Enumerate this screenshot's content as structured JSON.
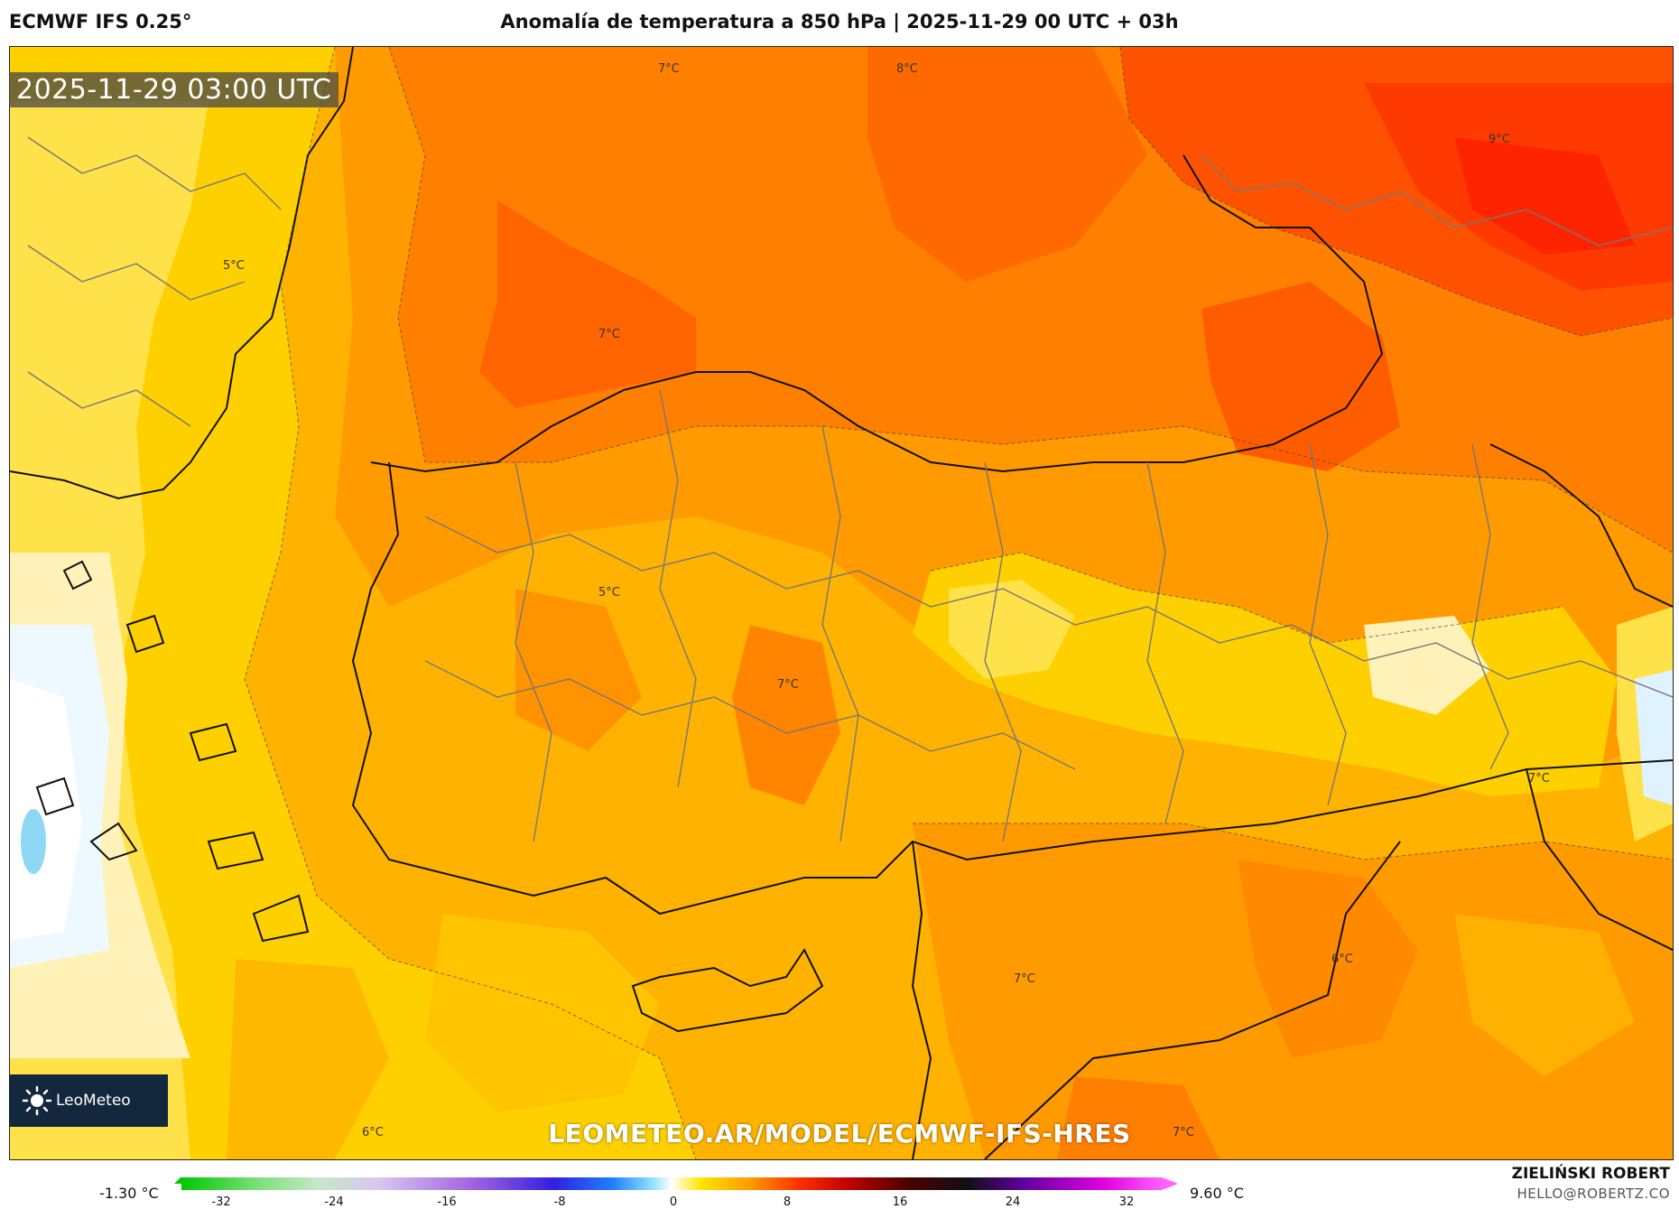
{
  "header": {
    "model": "ECMWF IFS 0.25°",
    "title": "Anomalía de temperatura a 850 hPa | 2025-11-29 00 UTC + 03h"
  },
  "map": {
    "valid_time": "2025-11-29 03:00 UTC",
    "isolines": [
      {
        "label": "7°C"
      },
      {
        "label": "8°C"
      },
      {
        "label": "9°C"
      },
      {
        "label": "5°C"
      },
      {
        "label": "7°C"
      },
      {
        "label": "5°C"
      },
      {
        "label": "7°C"
      },
      {
        "label": "7°C"
      },
      {
        "label": "6°C"
      },
      {
        "label": "7°C"
      },
      {
        "label": "6°C"
      },
      {
        "label": "7°C"
      }
    ],
    "watermark_url": "LEOMETEO.AR/MODEL/ECMWF-IFS-HRES",
    "logo_text": "LeoMeteo",
    "colors": {
      "white": "#ffffff",
      "pale_yellow": "#fff2b8",
      "yellow": "#ffd700",
      "deep_yellow": "#ffb800",
      "orange": "#ff9800",
      "deep_orange": "#ff7a00",
      "red_orange": "#ff5a00",
      "red": "#ff2a00",
      "pale_blue": "#dff2ff",
      "light_blue": "#8fd8f5"
    }
  },
  "colorbar": {
    "min_label": "-1.30 °C",
    "max_label": "9.60 °C",
    "ticks": [
      "-32",
      "-24",
      "-16",
      "-8",
      "0",
      "8",
      "16",
      "24",
      "32"
    ]
  },
  "credits": {
    "author": "ZIELIŃSKI ROBERT",
    "email": "HELLO@ROBERTZ.CO"
  }
}
